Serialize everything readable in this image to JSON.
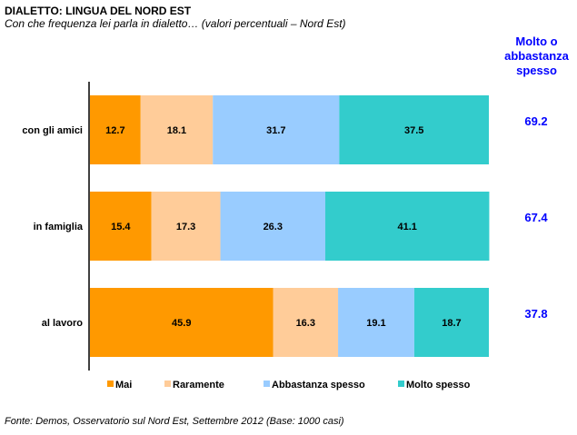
{
  "header": {
    "title": "DIALETTO: LINGUA DEL NORD EST",
    "subtitle": "Con che frequenza lei parla in dialetto… (valori percentuali – Nord Est)"
  },
  "side_header": {
    "lines": [
      "Molto o",
      "abbastanza",
      "spesso"
    ]
  },
  "source": "Fonte: Demos, Osservatorio sul Nord Est, Settembre 2012 (Base: 1000 casi)",
  "chart_data": {
    "type": "bar",
    "orientation": "horizontal",
    "stacked": true,
    "title": "DIALETTO: LINGUA DEL NORD EST",
    "subtitle": "Con che frequenza lei parla in dialetto… (valori percentuali – Nord Est)",
    "xlabel": "",
    "ylabel": "",
    "xlim": [
      0,
      100
    ],
    "grid": false,
    "legend_position": "bottom",
    "categories": [
      "con gli amici",
      "in famiglia",
      "al lavoro"
    ],
    "series": [
      {
        "name": "Mai",
        "color": "#ff9900",
        "values": [
          12.7,
          15.4,
          45.9
        ]
      },
      {
        "name": "Raramente",
        "color": "#ffcc99",
        "values": [
          18.1,
          17.3,
          16.3
        ]
      },
      {
        "name": "Abbastanza spesso",
        "color": "#99ccff",
        "values": [
          31.7,
          26.3,
          19.1
        ]
      },
      {
        "name": "Molto spesso",
        "color": "#33cccc",
        "values": [
          37.5,
          41.1,
          18.7
        ]
      }
    ],
    "totals_label": "Molto o abbastanza spesso",
    "totals": [
      69.2,
      67.4,
      37.8
    ],
    "totals_color": "#0000ff"
  }
}
